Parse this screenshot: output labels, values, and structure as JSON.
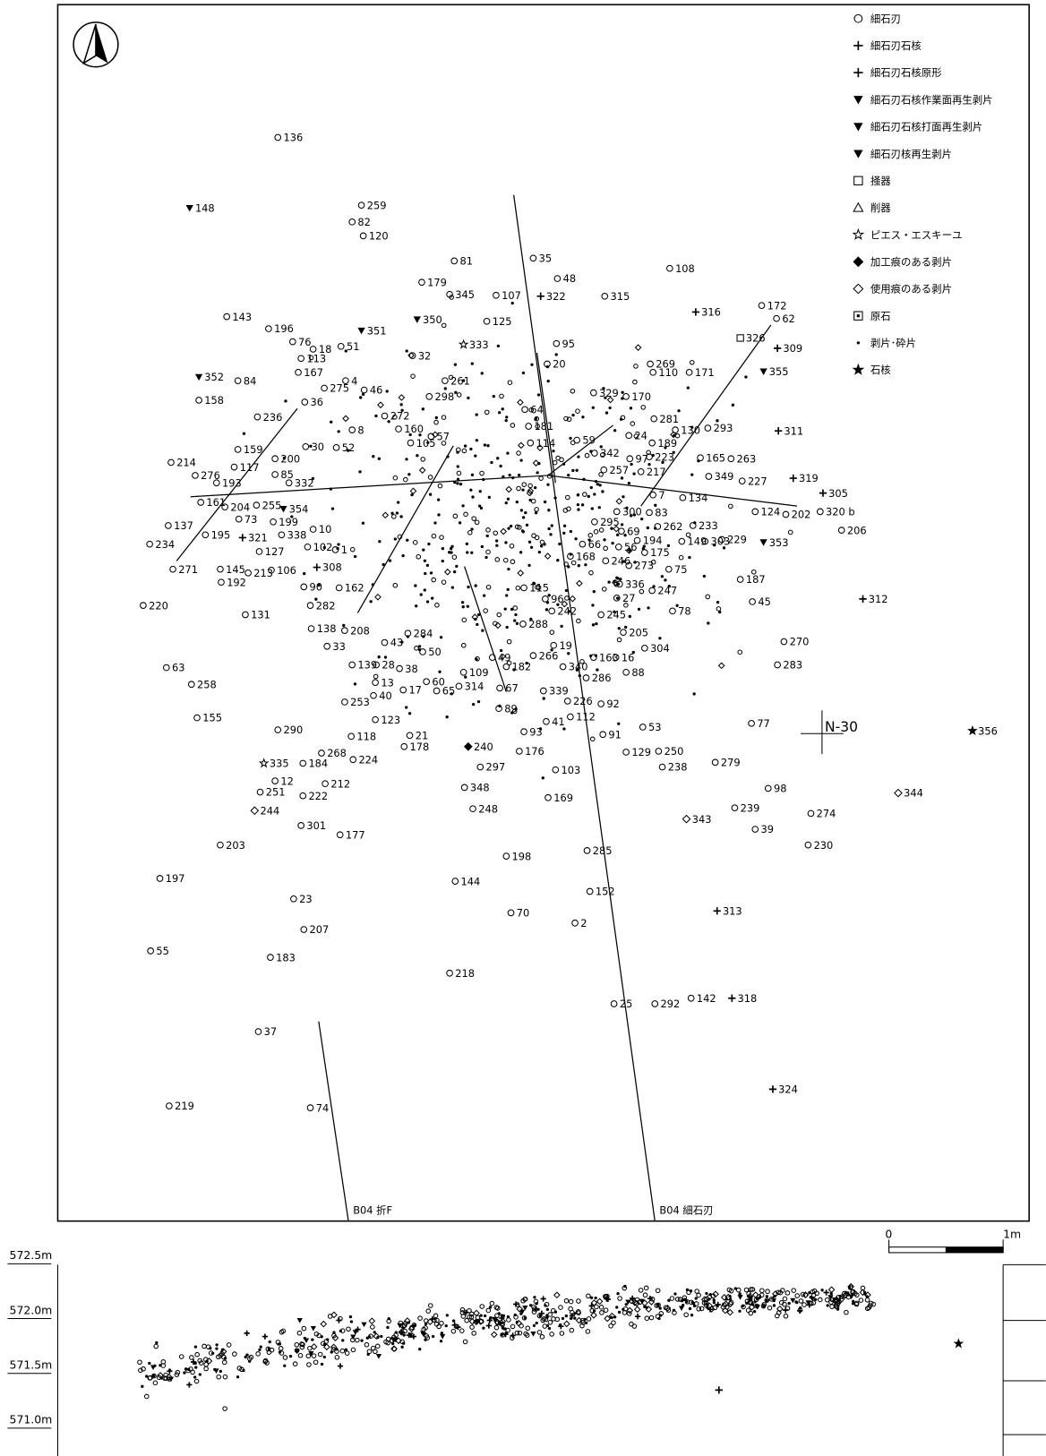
{
  "legend": [
    "細石刃",
    "細石刃石核",
    "細石刃石核原形",
    "細石刃石核作業面再生剥片",
    "細石刃石核打面再生剥片",
    "細石刃核再生剥片",
    "掻器",
    "削器",
    "ピエス・エスキーユ",
    "加工痕のある剥片",
    "使用痕のある剥片",
    "原石",
    "剥片･砕片",
    "石核"
  ],
  "labels": {
    "grid": "N-30",
    "line1": "B04 折F",
    "line2": "B04 細石刃",
    "scale0": "0",
    "scale1": "1m"
  },
  "elevations": [
    "572.5m",
    "572.0m",
    "571.5m",
    "571.0m"
  ],
  "points": [
    "136",
    "148",
    "259",
    "82",
    "120",
    "81",
    "179",
    "345",
    "107",
    "35",
    "48",
    "322",
    "108",
    "315",
    "316",
    "172",
    "62",
    "125",
    "350",
    "333",
    "351",
    "143",
    "196",
    "76",
    "18",
    "51",
    "113",
    "167",
    "4",
    "275",
    "352",
    "84",
    "158",
    "32",
    "95",
    "20",
    "326",
    "309",
    "269",
    "110",
    "171",
    "355",
    "261",
    "46",
    "298",
    "36",
    "236",
    "272",
    "160",
    "329",
    "170",
    "281",
    "130",
    "293",
    "311",
    "189",
    "24",
    "105",
    "57",
    "8",
    "52",
    "30",
    "159",
    "214",
    "117",
    "276",
    "193",
    "200",
    "85",
    "332",
    "342",
    "97",
    "223",
    "165",
    "263",
    "257",
    "217",
    "349",
    "227",
    "319",
    "305",
    "202",
    "320 b",
    "124",
    "206",
    "7",
    "134",
    "300",
    "295",
    "83",
    "262",
    "233",
    "229",
    "353",
    "161",
    "204",
    "255",
    "354",
    "73",
    "199",
    "10",
    "338",
    "102",
    "1",
    "127",
    "137",
    "234",
    "195",
    "321",
    "271",
    "145",
    "213",
    "106",
    "308",
    "192",
    "90",
    "162",
    "282",
    "220",
    "131",
    "138",
    "208",
    "33",
    "139",
    "28",
    "43",
    "284",
    "50",
    "38",
    "60",
    "65",
    "13",
    "40",
    "17",
    "314",
    "109",
    "182",
    "67",
    "49",
    "89",
    "288",
    "19",
    "266",
    "340",
    "286",
    "163",
    "16",
    "88",
    "304",
    "205",
    "245",
    "96",
    "242",
    "115",
    "27",
    "247",
    "78",
    "336",
    "168",
    "246",
    "273",
    "75",
    "175",
    "194",
    "56",
    "66",
    "69",
    "149",
    "303",
    "187",
    "45",
    "312",
    "270",
    "283",
    "63",
    "258",
    "155",
    "253",
    "123",
    "290",
    "118",
    "21",
    "178",
    "339",
    "226",
    "92",
    "112",
    "41",
    "93",
    "91",
    "53",
    "77",
    "356",
    "129",
    "250",
    "238",
    "279",
    "240",
    "297",
    "176",
    "103",
    "169",
    "348",
    "248",
    "268",
    "224",
    "184",
    "212",
    "335",
    "12",
    "251",
    "222",
    "244",
    "301",
    "203",
    "177",
    "98",
    "274",
    "344",
    "343",
    "239",
    "39",
    "230",
    "198",
    "285",
    "197",
    "144",
    "23",
    "152",
    "70",
    "2",
    "313",
    "207",
    "55",
    "183",
    "218",
    "25",
    "292",
    "142",
    "318",
    "37",
    "324",
    "219",
    "74",
    "59",
    "64",
    "181",
    "114"
  ]
}
